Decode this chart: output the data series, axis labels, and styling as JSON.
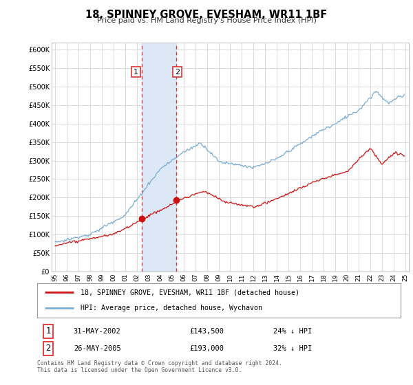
{
  "title": "18, SPINNEY GROVE, EVESHAM, WR11 1BF",
  "subtitle": "Price paid vs. HM Land Registry's House Price Index (HPI)",
  "ylim": [
    0,
    620000
  ],
  "xlim_start": 1994.7,
  "xlim_end": 2025.3,
  "hpi_color": "#7aadd4",
  "price_color": "#cc1111",
  "sale1_date": 2002.41,
  "sale1_price": 143500,
  "sale1_label": "1",
  "sale2_date": 2005.4,
  "sale2_price": 193000,
  "sale2_label": "2",
  "shade_color": "#dce8f5",
  "vline_color": "#dd3333",
  "box_label1_date": "31-MAY-2002",
  "box_label1_price": "£143,500",
  "box_label1_hpi": "24% ↓ HPI",
  "box_label2_date": "26-MAY-2005",
  "box_label2_price": "£193,000",
  "box_label2_hpi": "32% ↓ HPI",
  "legend_line1": "18, SPINNEY GROVE, EVESHAM, WR11 1BF (detached house)",
  "legend_line2": "HPI: Average price, detached house, Wychavon",
  "footnote": "Contains HM Land Registry data © Crown copyright and database right 2024.\nThis data is licensed under the Open Government Licence v3.0.",
  "background_color": "#ffffff",
  "grid_color": "#cccccc"
}
